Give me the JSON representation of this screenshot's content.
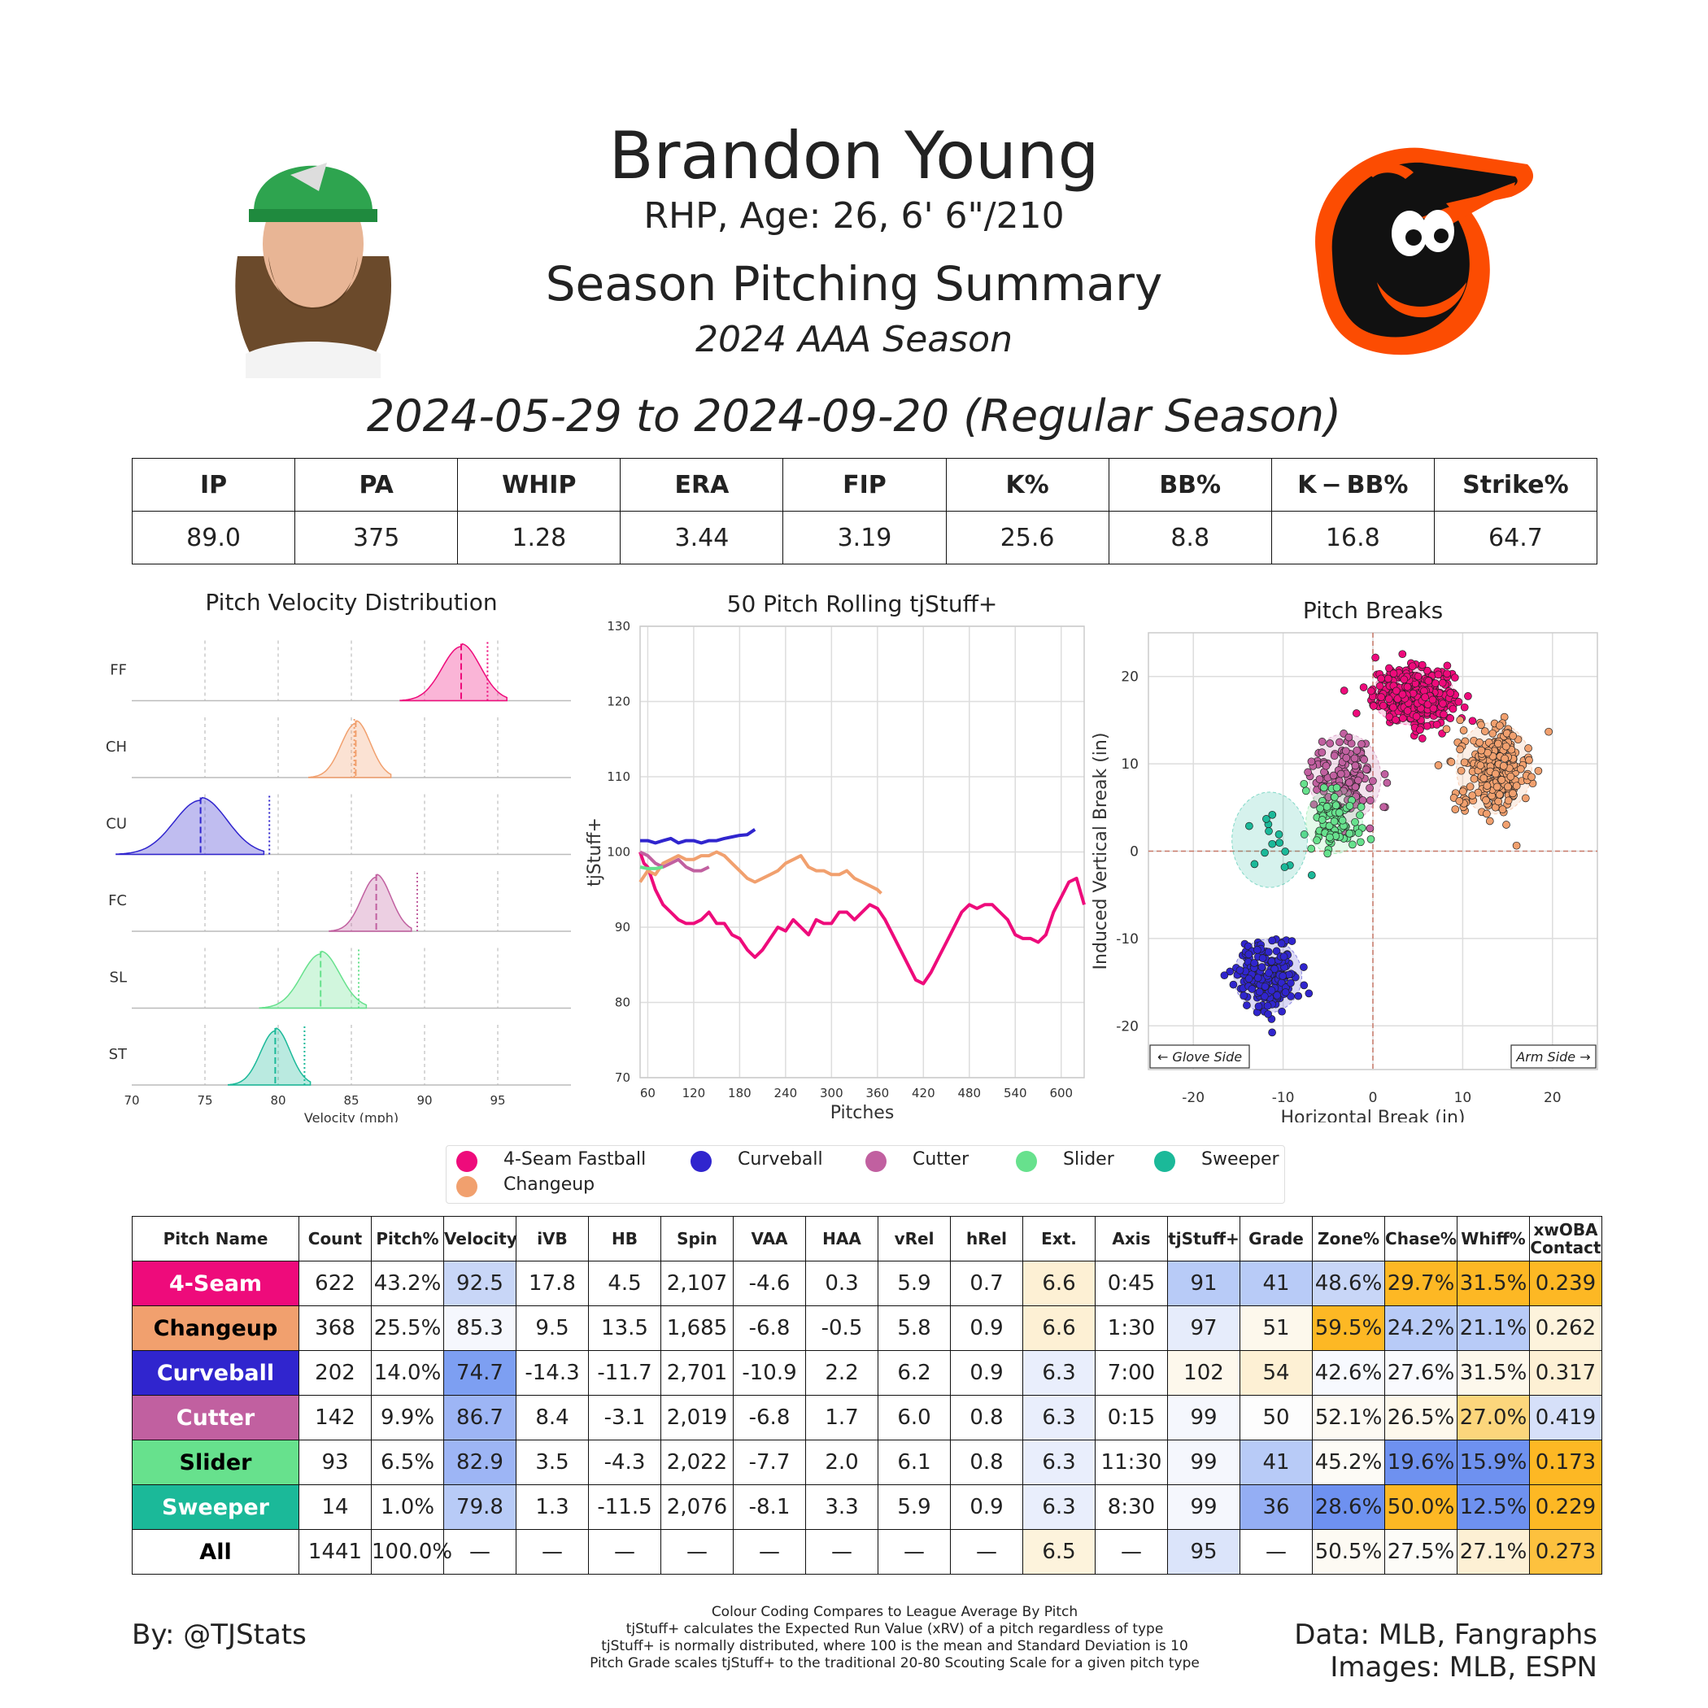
{
  "header": {
    "name": "Brandon Young",
    "info": "RHP, Age: 26, 6' 6\"/210",
    "title": "Season Pitching Summary",
    "season": "2024 AAA Season",
    "date_range": "2024-05-29 to 2024-09-20 (Regular Season)"
  },
  "summary": {
    "headers": [
      "IP",
      "PA",
      "WHIP",
      "ERA",
      "FIP",
      "K%",
      "BB%",
      "K − BB%",
      "Strike%"
    ],
    "values": [
      "89.0",
      "375",
      "1.28",
      "3.44",
      "3.19",
      "25.6",
      "8.8",
      "16.8",
      "64.7"
    ]
  },
  "colors": {
    "FF": "#ee0b7b",
    "CH": "#f1a06e",
    "CU": "#3025ce",
    "FC": "#c160a0",
    "SL": "#67e18d",
    "ST": "#1bb999"
  },
  "legend": [
    {
      "name": "4-Seam Fastball",
      "code": "FF"
    },
    {
      "name": "Curveball",
      "code": "CU"
    },
    {
      "name": "Cutter",
      "code": "FC"
    },
    {
      "name": "Slider",
      "code": "SL"
    },
    {
      "name": "Sweeper",
      "code": "ST"
    },
    {
      "name": "Changeup",
      "code": "CH"
    }
  ],
  "chart_data": [
    {
      "type": "area",
      "title": "Pitch Velocity Distribution",
      "xlabel": "Velocity (mph)",
      "xlim": [
        70,
        100
      ],
      "xticks": [
        70,
        75,
        80,
        85,
        90,
        95
      ],
      "series": [
        {
          "name": "FF",
          "mean": 92.5,
          "sd": 1.3,
          "league_avg": 94.3
        },
        {
          "name": "CH",
          "mean": 85.3,
          "sd": 1.0,
          "league_avg": 85.2
        },
        {
          "name": "CU",
          "mean": 74.7,
          "sd": 1.8,
          "league_avg": 79.4
        },
        {
          "name": "FC",
          "mean": 86.7,
          "sd": 1.0,
          "league_avg": 89.5
        },
        {
          "name": "SL",
          "mean": 82.9,
          "sd": 1.3,
          "league_avg": 85.5
        },
        {
          "name": "ST",
          "mean": 79.8,
          "sd": 1.0,
          "league_avg": 81.8
        }
      ]
    },
    {
      "type": "line",
      "title": "50 Pitch Rolling tjStuff+",
      "xlabel": "Pitches",
      "ylabel": "tjStuff+",
      "xlim": [
        50,
        630
      ],
      "ylim": [
        70,
        130
      ],
      "xticks": [
        60,
        120,
        180,
        240,
        300,
        360,
        420,
        480,
        540,
        600
      ],
      "yticks": [
        70,
        80,
        90,
        100,
        110,
        120,
        130
      ],
      "series": [
        {
          "name": "FF",
          "x": [
            50,
            55,
            60,
            65,
            70,
            80,
            90,
            100,
            110,
            120,
            130,
            140,
            150,
            160,
            170,
            180,
            190,
            200,
            210,
            220,
            230,
            240,
            250,
            260,
            270,
            280,
            290,
            300,
            310,
            320,
            330,
            340,
            350,
            360,
            370,
            380,
            390,
            400,
            410,
            420,
            430,
            440,
            450,
            460,
            470,
            480,
            490,
            500,
            510,
            520,
            530,
            540,
            550,
            560,
            570,
            580,
            590,
            600,
            610,
            620,
            630
          ],
          "y": [
            100,
            98.5,
            98,
            96.5,
            95,
            93,
            92,
            91,
            90.5,
            90.5,
            91,
            92,
            90.5,
            90.5,
            89,
            88.5,
            87,
            86,
            87,
            88.5,
            90,
            89.5,
            91,
            90,
            89,
            91,
            90.5,
            90.5,
            92,
            92,
            91,
            92,
            93,
            92.5,
            91,
            89,
            87,
            85,
            83,
            82.5,
            84,
            86,
            88,
            90,
            92,
            93,
            92.5,
            93,
            93,
            92,
            91,
            89,
            88.5,
            88.5,
            88,
            89,
            92,
            94,
            96,
            96.5,
            93
          ]
        },
        {
          "name": "CH",
          "x": [
            50,
            60,
            70,
            80,
            90,
            100,
            110,
            120,
            130,
            140,
            150,
            160,
            170,
            180,
            190,
            200,
            210,
            220,
            230,
            240,
            250,
            260,
            270,
            280,
            290,
            300,
            310,
            320,
            330,
            340,
            350,
            360,
            365
          ],
          "y": [
            96,
            97.5,
            97,
            98.5,
            99,
            99.5,
            99,
            99,
            99.5,
            99.5,
            100,
            99.5,
            98.5,
            97.5,
            96.5,
            96,
            96.5,
            97,
            97.5,
            98.5,
            99,
            99.5,
            98,
            97.5,
            97.5,
            97,
            97,
            97.5,
            96.5,
            96,
            95.5,
            95,
            94.5
          ]
        },
        {
          "name": "CU",
          "x": [
            50,
            60,
            70,
            80,
            90,
            100,
            110,
            120,
            130,
            140,
            150,
            160,
            170,
            180,
            190,
            200
          ],
          "y": [
            101.5,
            101.5,
            101.2,
            101.5,
            101.8,
            101.2,
            101.5,
            101.5,
            101.2,
            101.5,
            101.5,
            101.8,
            102,
            102.2,
            102.3,
            103
          ]
        },
        {
          "name": "FC",
          "x": [
            50,
            60,
            70,
            80,
            90,
            100,
            110,
            120,
            130,
            140
          ],
          "y": [
            100,
            99.5,
            98.5,
            98,
            98.5,
            99,
            98,
            97.5,
            97.5,
            98
          ]
        },
        {
          "name": "SL",
          "x": [
            50,
            60,
            70,
            80
          ],
          "y": [
            98,
            97.8,
            97.8,
            98
          ]
        }
      ]
    },
    {
      "type": "scatter",
      "title": "Pitch Breaks",
      "xlabel": "Horizontal Break (in)",
      "ylabel": "Induced Vertical Break (in)",
      "xlim": [
        -25,
        25
      ],
      "ylim": [
        -25,
        25
      ],
      "xticks": [
        -20,
        -10,
        0,
        10,
        20
      ],
      "yticks": [
        -20,
        -10,
        0,
        10,
        20
      ],
      "annotations": [
        "← Glove Side",
        "Arm Side →"
      ],
      "clusters": [
        {
          "name": "FF",
          "hb": 4.5,
          "ivb": 17.8,
          "sx": 2.2,
          "sy": 1.6,
          "n": 380
        },
        {
          "name": "CH",
          "hb": 13.5,
          "ivb": 9.5,
          "sx": 2.0,
          "sy": 2.5,
          "n": 260
        },
        {
          "name": "CU",
          "hb": -11.7,
          "ivb": -14.3,
          "sx": 1.8,
          "sy": 2.0,
          "n": 200
        },
        {
          "name": "FC",
          "hb": -3.1,
          "ivb": 8.4,
          "sx": 1.9,
          "sy": 2.4,
          "n": 130
        },
        {
          "name": "SL",
          "hb": -4.3,
          "ivb": 3.5,
          "sx": 1.5,
          "sy": 1.8,
          "n": 90
        },
        {
          "name": "ST",
          "hb": -11.5,
          "ivb": 1.3,
          "sx": 2.0,
          "sy": 2.6,
          "n": 14
        }
      ]
    }
  ],
  "pitch_table": {
    "headers": [
      "Pitch Name",
      "Count",
      "Pitch%",
      "Velocity",
      "iVB",
      "HB",
      "Spin",
      "VAA",
      "HAA",
      "vRel",
      "hRel",
      "Ext.",
      "Axis",
      "tjStuff+",
      "Grade",
      "Zone%",
      "Chase%",
      "Whiff%",
      "xwOBA Contact"
    ],
    "rows": [
      {
        "name": "4-Seam",
        "code": "FF",
        "text_color": "#ffffff",
        "cells": [
          "622",
          "43.2%",
          "92.5",
          "17.8",
          "4.5",
          "2,107",
          "-4.6",
          "0.3",
          "5.9",
          "0.7",
          "6.6",
          "0:45",
          "91",
          "41",
          "48.6%",
          "29.7%",
          "31.5%",
          "0.239"
        ],
        "bg": [
          "",
          "",
          "#c8d6f7",
          "",
          "",
          "",
          "",
          "",
          "",
          "",
          "#fdf0d4",
          "",
          "#b8cbf7",
          "#b8cbf7",
          "#c8d6f7",
          "#fdb824",
          "#fdb824",
          "#fdb824"
        ]
      },
      {
        "name": "Changeup",
        "code": "CH",
        "text_color": "#000000",
        "cells": [
          "368",
          "25.5%",
          "85.3",
          "9.5",
          "13.5",
          "1,685",
          "-6.8",
          "-0.5",
          "5.8",
          "0.9",
          "6.6",
          "1:30",
          "97",
          "51",
          "59.5%",
          "24.2%",
          "21.1%",
          "0.262"
        ],
        "bg": [
          "",
          "",
          "#f5f7fd",
          "",
          "",
          "",
          "",
          "",
          "",
          "",
          "#fdf0d4",
          "",
          "#e6ecfb",
          "#fdf8ec",
          "#fdb824",
          "#b8cbf7",
          "#b8cbf7",
          "#fdf3dc"
        ]
      },
      {
        "name": "Curveball",
        "code": "CU",
        "text_color": "#ffffff",
        "cells": [
          "202",
          "14.0%",
          "74.7",
          "-14.3",
          "-11.7",
          "2,701",
          "-10.9",
          "2.2",
          "6.2",
          "0.9",
          "6.3",
          "7:00",
          "102",
          "54",
          "42.6%",
          "27.6%",
          "31.5%",
          "0.317"
        ],
        "bg": [
          "",
          "",
          "#7d9ff2",
          "",
          "",
          "",
          "",
          "",
          "",
          "",
          "#e9eefc",
          "",
          "#fdf8ec",
          "#fdf0d4",
          "#f7f9fe",
          "#f9fafe",
          "#fdf8ec",
          "#fdf0d4"
        ]
      },
      {
        "name": "Cutter",
        "code": "FC",
        "text_color": "#ffffff",
        "cells": [
          "142",
          "9.9%",
          "86.7",
          "8.4",
          "-3.1",
          "2,019",
          "-6.8",
          "1.7",
          "6.0",
          "0.8",
          "6.3",
          "0:15",
          "99",
          "50",
          "52.1%",
          "26.5%",
          "27.0%",
          "0.419"
        ],
        "bg": [
          "",
          "",
          "#9db5f5",
          "",
          "",
          "",
          "",
          "",
          "",
          "",
          "#e9eefc",
          "",
          "#f5f7fd",
          "#fdfdfd",
          "#fdfaf3",
          "#fdf8ec",
          "#fcd67c",
          "#d6e0f9"
        ]
      },
      {
        "name": "Slider",
        "code": "SL",
        "text_color": "#000000",
        "cells": [
          "93",
          "6.5%",
          "82.9",
          "3.5",
          "-4.3",
          "2,022",
          "-7.7",
          "2.0",
          "6.1",
          "0.8",
          "6.3",
          "11:30",
          "99",
          "41",
          "45.2%",
          "19.6%",
          "15.9%",
          "0.173"
        ],
        "bg": [
          "",
          "",
          "#9db5f5",
          "",
          "",
          "",
          "",
          "",
          "",
          "",
          "#e9eefc",
          "",
          "#f5f7fd",
          "#b8cbf7",
          "#fdfbf6",
          "#6e91f0",
          "#6e91f0",
          "#fdb824"
        ]
      },
      {
        "name": "Sweeper",
        "code": "ST",
        "text_color": "#ffffff",
        "cells": [
          "14",
          "1.0%",
          "79.8",
          "1.3",
          "-11.5",
          "2,076",
          "-8.1",
          "3.3",
          "5.9",
          "0.9",
          "6.3",
          "8:30",
          "99",
          "36",
          "28.6%",
          "50.0%",
          "12.5%",
          "0.229"
        ],
        "bg": [
          "",
          "",
          "#b8cbf7",
          "",
          "",
          "",
          "",
          "",
          "",
          "",
          "#e9eefc",
          "",
          "#f5f7fd",
          "#94aef4",
          "#6e91f0",
          "#fdb824",
          "#6e91f0",
          "#fdb824"
        ]
      },
      {
        "name": "All",
        "code": "",
        "text_color": "#000000",
        "cells": [
          "1441",
          "100.0%",
          "—",
          "—",
          "—",
          "—",
          "—",
          "—",
          "—",
          "—",
          "6.5",
          "—",
          "95",
          "—",
          "50.5%",
          "27.5%",
          "27.1%",
          "0.273"
        ],
        "bg": [
          "",
          "",
          "",
          "",
          "",
          "",
          "",
          "",
          "",
          "",
          "#fdf3dc",
          "",
          "#dbe4fa",
          "",
          "#fdfaf3",
          "#fdfcf8",
          "#fdf0d4",
          "#fdc13e"
        ]
      }
    ]
  },
  "footer": {
    "by": "By: @TJStats",
    "notes": [
      "Colour Coding Compares to League Average By Pitch",
      "tjStuff+ calculates the Expected Run Value (xRV) of a pitch regardless of type",
      "tjStuff+ is normally distributed, where 100 is the mean and Standard Deviation is 10",
      "Pitch Grade scales tjStuff+ to the traditional 20-80 Scouting Scale for a given pitch type"
    ],
    "data_source": "Data: MLB, Fangraphs",
    "image_source": "Images: MLB, ESPN"
  }
}
